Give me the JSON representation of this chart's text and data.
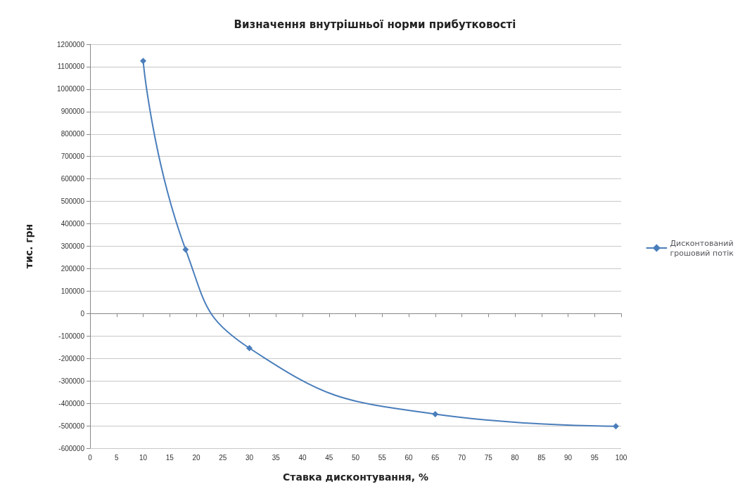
{
  "chart_data": {
    "type": "line",
    "title": "Визначення внутрішньої норми прибутковості",
    "xlabel": "Ставка дисконтування, %",
    "ylabel": "тис. грн",
    "series": [
      {
        "name": "Дисконтований грошовий потік",
        "color": "#4a7ebb",
        "x": [
          10,
          18,
          30,
          65,
          99
        ],
        "values": [
          1126000,
          285000,
          -154000,
          -448000,
          -502000
        ]
      }
    ],
    "xlim": [
      0,
      100
    ],
    "xticks": [
      0,
      5,
      10,
      15,
      20,
      25,
      30,
      35,
      40,
      45,
      50,
      55,
      60,
      65,
      70,
      75,
      80,
      85,
      90,
      95,
      100
    ],
    "ylim": [
      -600000,
      1200000
    ],
    "yticks": [
      -600000,
      -500000,
      -400000,
      -300000,
      -200000,
      -100000,
      0,
      100000,
      200000,
      300000,
      400000,
      500000,
      600000,
      700000,
      800000,
      900000,
      1000000,
      1100000,
      1200000
    ],
    "grid": "y",
    "legend": "right",
    "marker": "diamond",
    "line_style": "solid"
  }
}
